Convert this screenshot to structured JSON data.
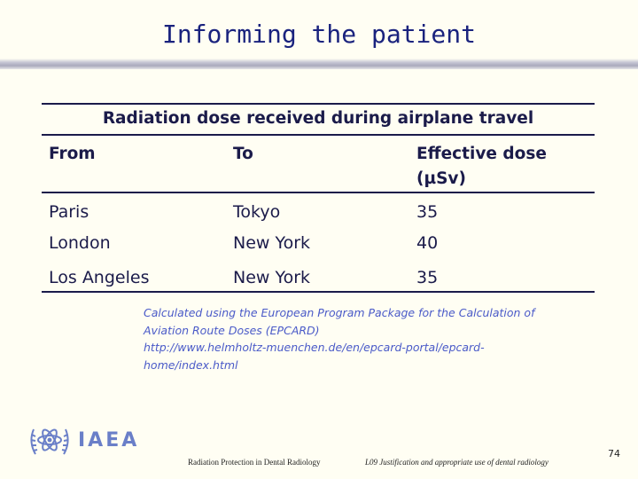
{
  "slide": {
    "title": "Informing the patient"
  },
  "table": {
    "caption": "Radiation dose received during airplane travel",
    "headers": [
      "From",
      "To",
      "Effective dose",
      "(µSv)"
    ],
    "rows": [
      [
        "Paris",
        "Tokyo",
        "35"
      ],
      [
        "London",
        "New York",
        "40"
      ],
      [
        "Los Angeles",
        "New York",
        "35"
      ]
    ]
  },
  "note": {
    "lines": [
      "Calculated using the European Program Package for the Calculation of",
      "Aviation Route Doses (EPCARD)",
      "http://www.helmholtz-muenchen.de/en/epcard-portal/epcard-",
      "home/index.html"
    ]
  },
  "logo": {
    "text": "IAEA",
    "icon": "iaea-atom-wreath-icon"
  },
  "footer": {
    "left": "Radiation Protection in Dental Radiology",
    "right": "L09 Justification and appropriate use of dental radiology",
    "page": "74"
  },
  "colors": {
    "title": "#1a237e",
    "table_text": "#1b1b4a",
    "note": "#4a5ac8",
    "logo": "#6a7fc8",
    "background": "#fffef3"
  }
}
